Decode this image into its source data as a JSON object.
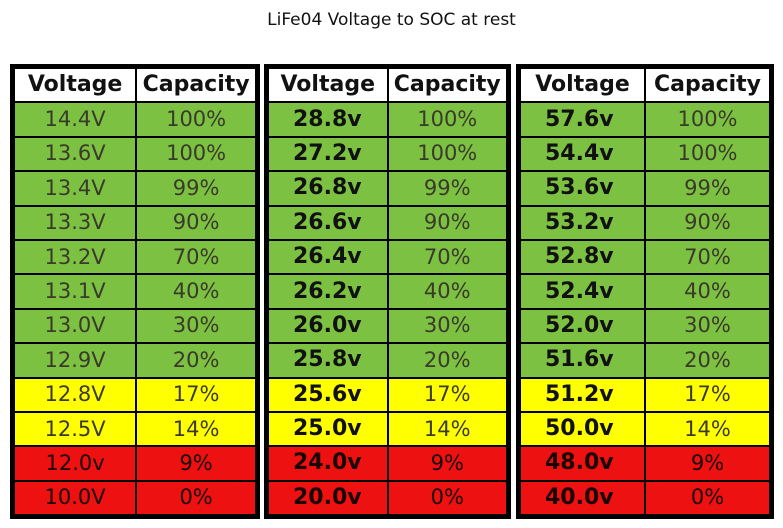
{
  "title": "LiFe04 Voltage to SOC at rest",
  "colors": {
    "green": "#7cc142",
    "yellow": "#ffff00",
    "red": "#ee1111"
  },
  "tables": [
    {
      "headers": [
        "Voltage",
        "Capacity"
      ],
      "rows": [
        {
          "voltage": "14.4V",
          "capacity": "100%",
          "color": "g"
        },
        {
          "voltage": "13.6V",
          "capacity": "100%",
          "color": "g"
        },
        {
          "voltage": "13.4V",
          "capacity": "99%",
          "color": "g"
        },
        {
          "voltage": "13.3V",
          "capacity": "90%",
          "color": "g"
        },
        {
          "voltage": "13.2V",
          "capacity": "70%",
          "color": "g"
        },
        {
          "voltage": "13.1V",
          "capacity": "40%",
          "color": "g"
        },
        {
          "voltage": "13.0V",
          "capacity": "30%",
          "color": "g"
        },
        {
          "voltage": "12.9V",
          "capacity": "20%",
          "color": "g"
        },
        {
          "voltage": "12.8V",
          "capacity": "17%",
          "color": "y"
        },
        {
          "voltage": "12.5V",
          "capacity": "14%",
          "color": "y"
        },
        {
          "voltage": "12.0v",
          "capacity": "9%",
          "color": "r"
        },
        {
          "voltage": "10.0V",
          "capacity": "0%",
          "color": "r"
        }
      ]
    },
    {
      "headers": [
        "Voltage",
        "Capacity"
      ],
      "rows": [
        {
          "voltage": "28.8v",
          "capacity": "100%",
          "color": "g"
        },
        {
          "voltage": "27.2v",
          "capacity": "100%",
          "color": "g"
        },
        {
          "voltage": "26.8v",
          "capacity": "99%",
          "color": "g"
        },
        {
          "voltage": "26.6v",
          "capacity": "90%",
          "color": "g"
        },
        {
          "voltage": "26.4v",
          "capacity": "70%",
          "color": "g"
        },
        {
          "voltage": "26.2v",
          "capacity": "40%",
          "color": "g"
        },
        {
          "voltage": "26.0v",
          "capacity": "30%",
          "color": "g"
        },
        {
          "voltage": "25.8v",
          "capacity": "20%",
          "color": "g"
        },
        {
          "voltage": "25.6v",
          "capacity": "17%",
          "color": "y"
        },
        {
          "voltage": "25.0v",
          "capacity": "14%",
          "color": "y"
        },
        {
          "voltage": "24.0v",
          "capacity": "9%",
          "color": "r"
        },
        {
          "voltage": "20.0v",
          "capacity": "0%",
          "color": "r"
        }
      ]
    },
    {
      "headers": [
        "Voltage",
        "Capacity"
      ],
      "rows": [
        {
          "voltage": "57.6v",
          "capacity": "100%",
          "color": "g"
        },
        {
          "voltage": "54.4v",
          "capacity": "100%",
          "color": "g"
        },
        {
          "voltage": "53.6v",
          "capacity": "99%",
          "color": "g"
        },
        {
          "voltage": "53.2v",
          "capacity": "90%",
          "color": "g"
        },
        {
          "voltage": "52.8v",
          "capacity": "70%",
          "color": "g"
        },
        {
          "voltage": "52.4v",
          "capacity": "40%",
          "color": "g"
        },
        {
          "voltage": "52.0v",
          "capacity": "30%",
          "color": "g"
        },
        {
          "voltage": "51.6v",
          "capacity": "20%",
          "color": "g"
        },
        {
          "voltage": "51.2v",
          "capacity": "17%",
          "color": "y"
        },
        {
          "voltage": "50.0v",
          "capacity": "14%",
          "color": "y"
        },
        {
          "voltage": "48.0v",
          "capacity": "9%",
          "color": "r"
        },
        {
          "voltage": "40.0v",
          "capacity": "0%",
          "color": "r"
        }
      ]
    }
  ]
}
